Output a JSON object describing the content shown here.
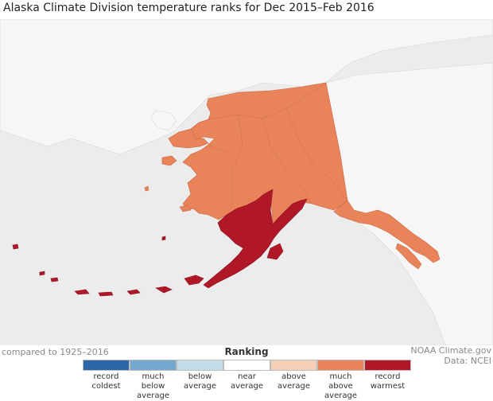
{
  "title": "Alaska Climate Division temperature ranks for Dec 2015–Feb 2016",
  "baseline_note": "compared to 1925–2016",
  "credit": {
    "source": "NOAA Climate.gov",
    "data": "Data: NCEI"
  },
  "legend": {
    "title": "Ranking",
    "items": [
      {
        "line1": "record",
        "line2": "coldest",
        "color": "#2c66a8"
      },
      {
        "line1": "much below",
        "line2": "average",
        "color": "#74a9cf"
      },
      {
        "line1": "below",
        "line2": "average",
        "color": "#c6dbe8"
      },
      {
        "line1": "near",
        "line2": "average",
        "color": "#ffffff"
      },
      {
        "line1": "above",
        "line2": "average",
        "color": "#f6cfb6"
      },
      {
        "line1": "much above",
        "line2": "average",
        "color": "#e8835a"
      },
      {
        "line1": "record",
        "line2": "warmest",
        "color": "#b01828"
      }
    ]
  },
  "regions": [
    {
      "name": "Interior / North Slope / West Coast",
      "rank": "much above average",
      "color": "#e8835a"
    },
    {
      "name": "Southeast / Panhandle",
      "rank": "much above average",
      "color": "#e8835a"
    },
    {
      "name": "Bristol Bay / Aleutians / Kodiak",
      "rank": "record warmest",
      "color": "#b01828"
    }
  ]
}
